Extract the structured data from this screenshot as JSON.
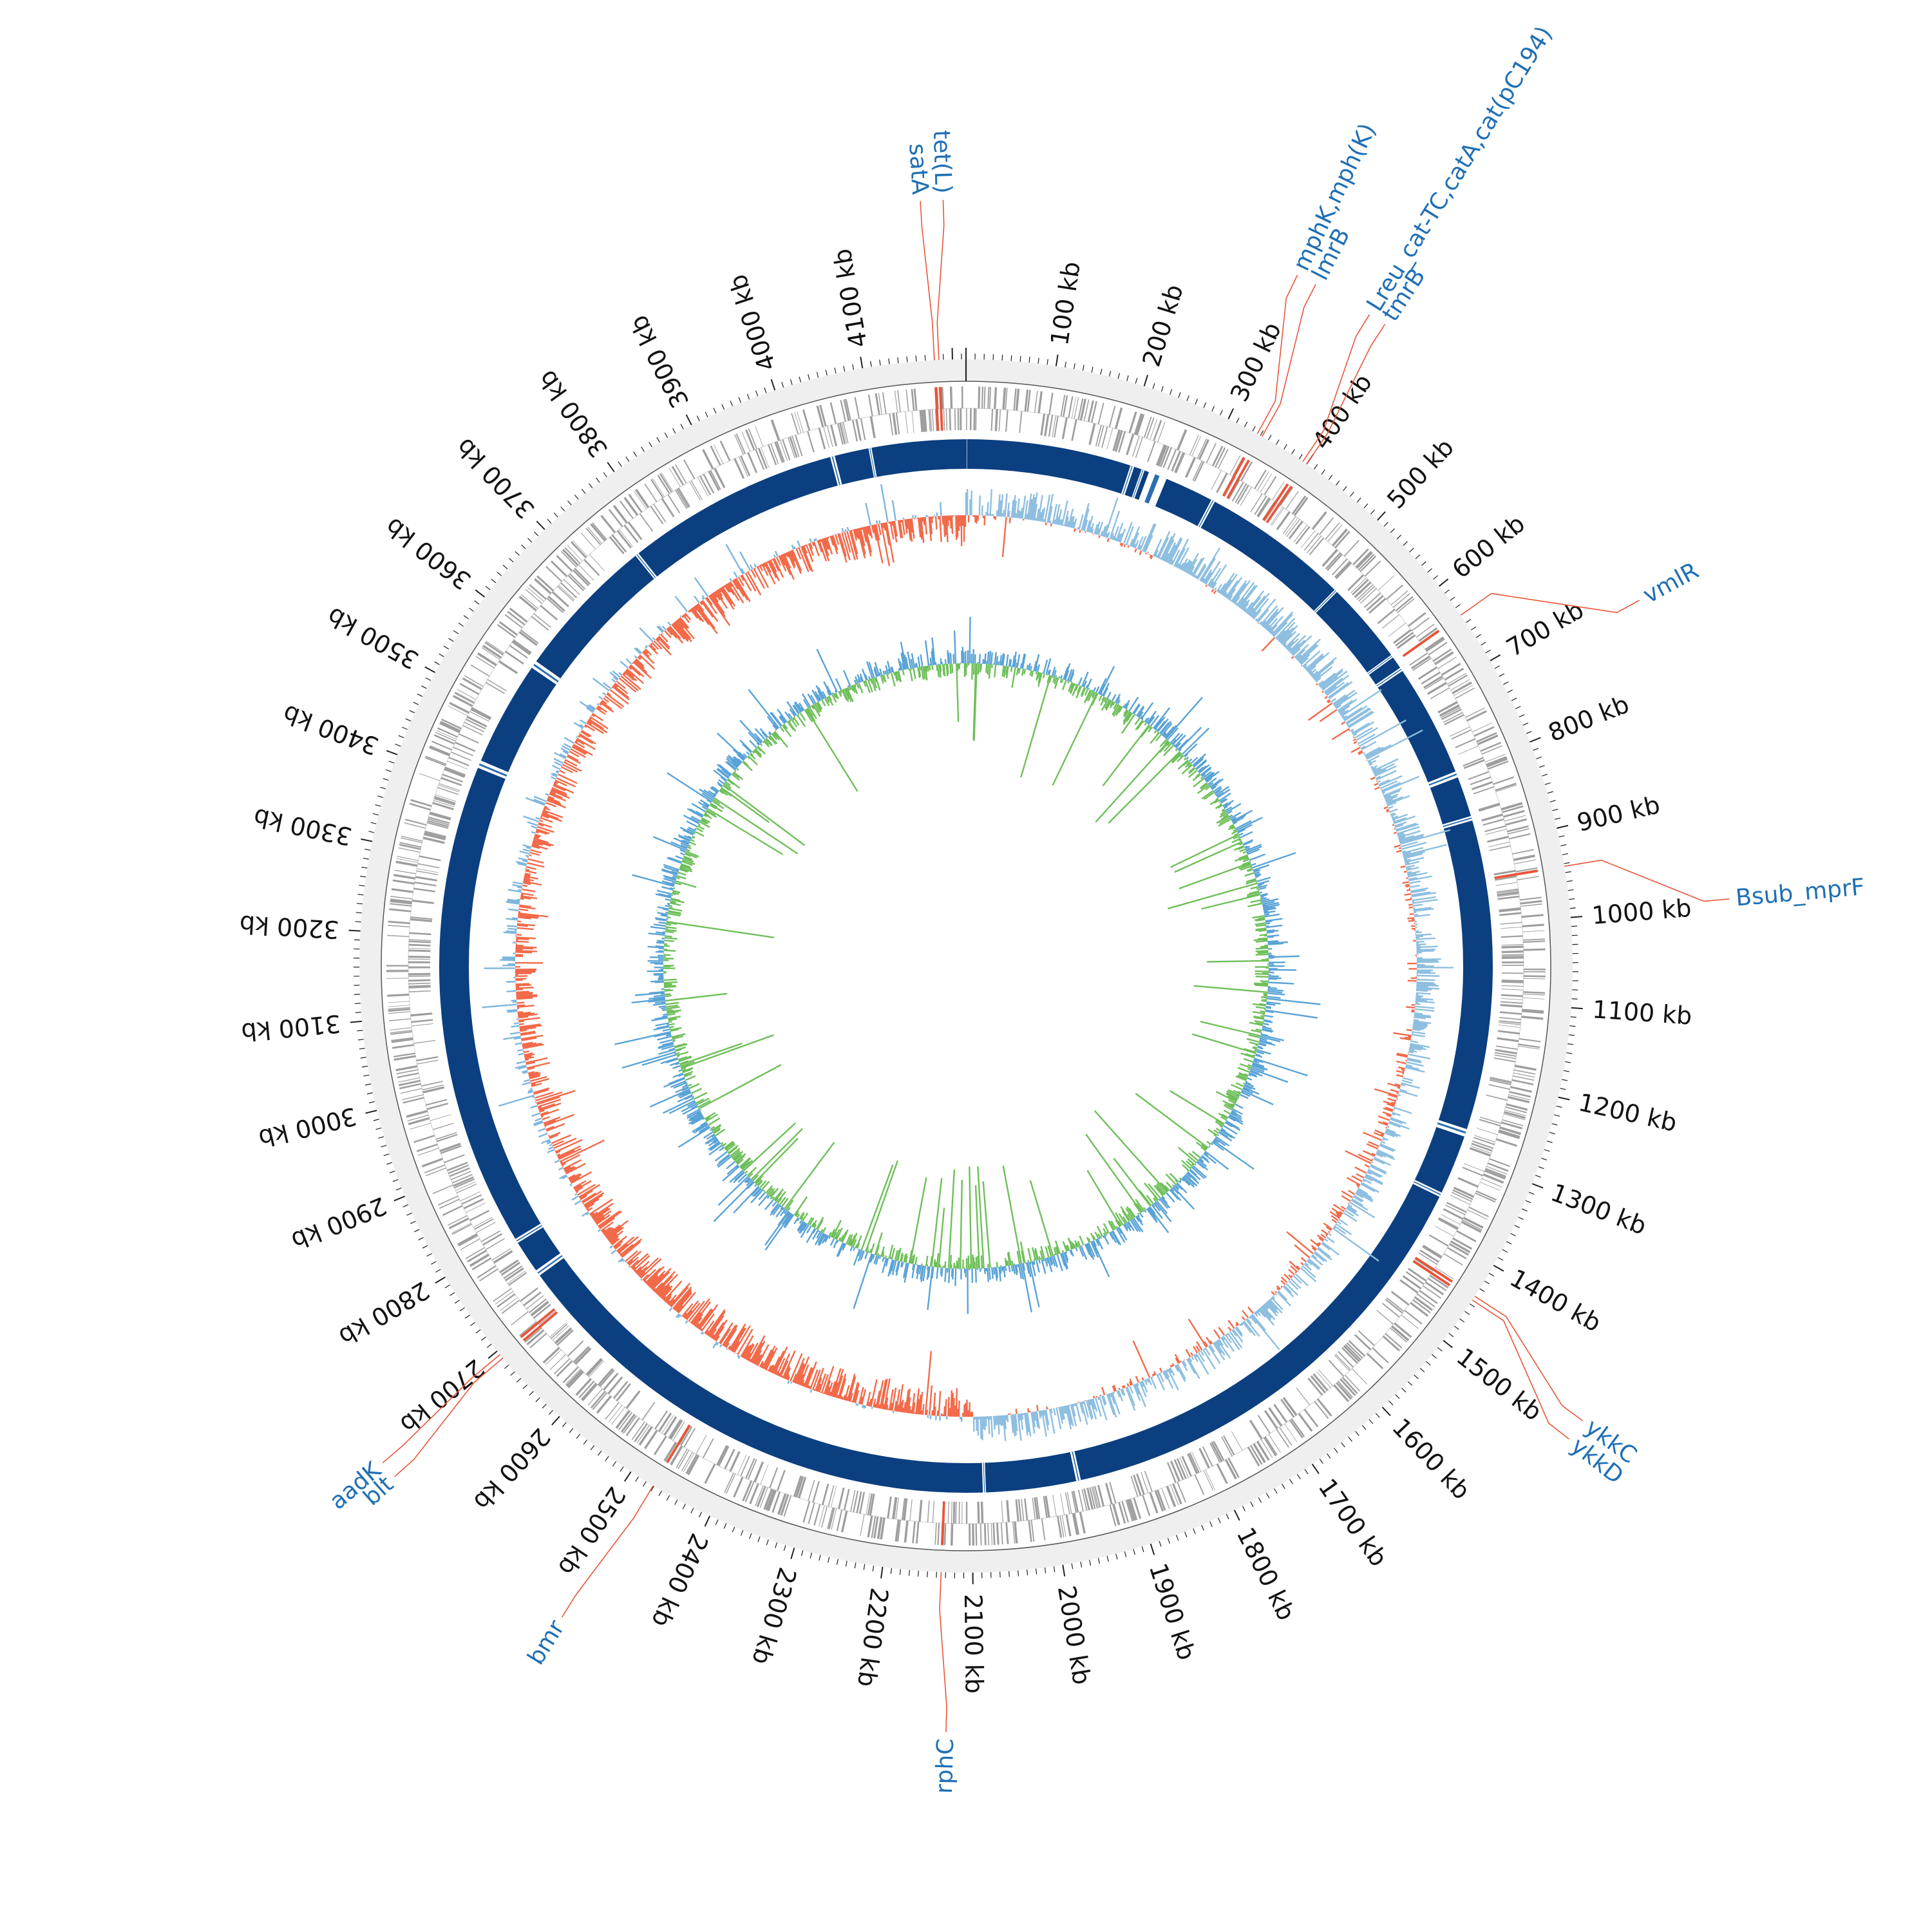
{
  "chart_data": {
    "type": "circular-genome-map",
    "genome_length_kb": 4215,
    "tick_unit": "kb",
    "tick_labels": [
      "100 kb",
      "200 kb",
      "300 kb",
      "400 kb",
      "500 kb",
      "600 kb",
      "700 kb",
      "800 kb",
      "900 kb",
      "1000 kb",
      "1100 kb",
      "1200 kb",
      "1300 kb",
      "1400 kb",
      "1500 kb",
      "1600 kb",
      "1700 kb",
      "1800 kb",
      "1900 kb",
      "2000 kb",
      "2100 kb",
      "2200 kb",
      "2300 kb",
      "2400 kb",
      "2500 kb",
      "2600 kb",
      "2700 kb",
      "2800 kb",
      "2900 kb",
      "3000 kb",
      "3100 kb",
      "3200 kb",
      "3300 kb",
      "3400 kb",
      "3500 kb",
      "3600 kb",
      "3700 kb",
      "3800 kb",
      "3900 kb",
      "4000 kb",
      "4100 kb"
    ],
    "tick_values_kb": [
      100,
      200,
      300,
      400,
      500,
      600,
      700,
      800,
      900,
      1000,
      1100,
      1200,
      1300,
      1400,
      1500,
      1600,
      1700,
      1800,
      1900,
      2000,
      2100,
      2200,
      2300,
      2400,
      2500,
      2600,
      2700,
      2800,
      2900,
      3000,
      3100,
      3200,
      3300,
      3400,
      3500,
      3600,
      3700,
      3800,
      3900,
      4000,
      4100
    ],
    "annotated_genes": [
      {
        "label": "tet(L)",
        "position_kb": 4185
      },
      {
        "label": "satA",
        "position_kb": 4180
      },
      {
        "label": "mphK,mph(K)",
        "position_kb": 336
      },
      {
        "label": "lmrB",
        "position_kb": 342
      },
      {
        "label": "Lreu_cat-TC,catA,cat(pC194)",
        "position_kb": 395
      },
      {
        "label": "tmrB",
        "position_kb": 400
      },
      {
        "label": "vmlR",
        "position_kb": 640
      },
      {
        "label": "Bsub_mprF",
        "position_kb": 943
      },
      {
        "label": "ykkC",
        "position_kb": 1440
      },
      {
        "label": "ykkD",
        "position_kb": 1445
      },
      {
        "label": "rphC",
        "position_kb": 2135
      },
      {
        "label": "bmr",
        "position_kb": 2471
      },
      {
        "label": "aadK",
        "position_kb": 2695
      },
      {
        "label": "blt",
        "position_kb": 2690
      }
    ],
    "colors": {
      "outer_ring": "#efefef",
      "cds_genes": "#9e9e9e",
      "resistance_genes": "#e8553a",
      "blast_ring": "#0b3f80",
      "blast_gap": "#2a6fb0",
      "gc_skew_positive": "#8fbfe0",
      "gc_skew_negative": "#f26a4a",
      "gc_content_positive": "#5aa3d6",
      "gc_content_negative": "#6fbf5a",
      "label_text": "#1f6fb5",
      "label_line": "#e8553a"
    }
  }
}
